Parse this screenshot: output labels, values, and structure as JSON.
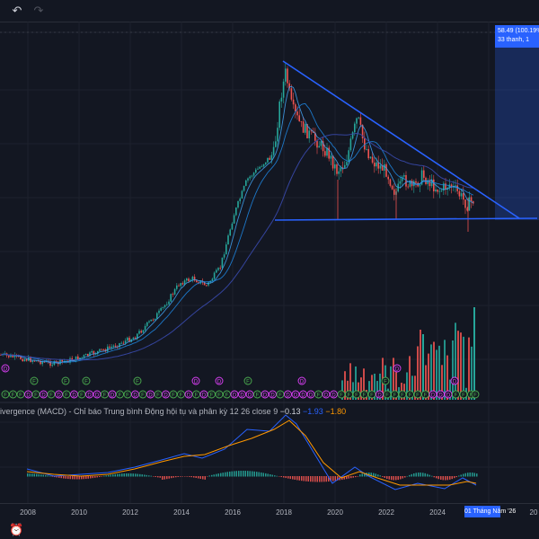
{
  "toolbar": {
    "undo_icon": "undo-icon",
    "redo_icon": "redo-icon",
    "undo": "↶",
    "redo": "↷"
  },
  "indicator": {
    "name": "ivergence (MACD) - Chỉ báo Trung bình Động hội tụ và phân kỳ",
    "params": "12 26 close 9",
    "hist": "−0.13",
    "macd": "−1.93",
    "signal": "−1.80",
    "macd_color": "#2962ff",
    "signal_color": "#ff9800"
  },
  "measure": {
    "line1": "58.49 (100.19%)",
    "line2": "33 thanh, 1"
  },
  "xaxis": {
    "ticks": [
      "2008",
      "2010",
      "2012",
      "2014",
      "2016",
      "2018",
      "2020",
      "2022",
      "2024"
    ],
    "cursor_label": "01 Tháng Năm '26",
    "edge_label": "20"
  },
  "colors": {
    "up": "#26a69a",
    "down": "#ef5350",
    "trendline": "#2962ff",
    "ma1": "#2962ff",
    "ma2": "#1e88e5",
    "background": "#131722"
  },
  "events": {
    "dividend_label": "D",
    "split_label": "F"
  },
  "bottom": {
    "icon": "alarm-clock-icon",
    "glyph": "⏰"
  }
}
